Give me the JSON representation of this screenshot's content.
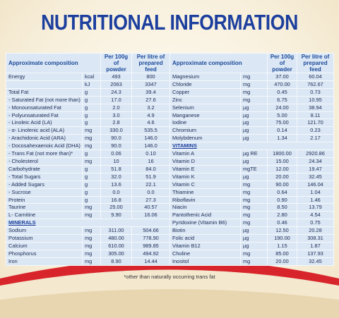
{
  "title": "NUTRITIONAL INFORMATION",
  "table": {
    "left": {
      "header": [
        "Approximate composition",
        "Per 100g of powder",
        "Per litre of prepared feed"
      ],
      "rows": [
        [
          "Energy",
          "kcal",
          "493",
          "800"
        ],
        [
          null,
          "kJ",
          "2063",
          "3347"
        ],
        [
          "Total Fat",
          "g",
          "24.3",
          "39.4"
        ],
        [
          "- Saturated Fat (not more than)",
          "g",
          "17.0",
          "27.6"
        ],
        [
          "- Monounsaturated Fat",
          "g",
          "2.0",
          "3.2"
        ],
        [
          "- Polyunsaturated Fat",
          "g",
          "3.0",
          "4.9"
        ],
        [
          "- Linoleic Acid (LA)",
          "g",
          "2.8",
          "4.6"
        ],
        [
          "- α- Linolenic acid (ALA)",
          "mg",
          "330.0",
          "535.5"
        ],
        [
          "- Arachidonic Acid (ARA)",
          "mg",
          "90.0",
          "146.0"
        ],
        [
          "- Docosahexaenoic Acid (DHA)",
          "mg",
          "90.0",
          "146.0"
        ],
        [
          "- Trans Fat (not more than)*",
          "g",
          "0.06",
          "0.10"
        ],
        [
          "- Cholesterol",
          "mg",
          "10",
          "16"
        ],
        [
          "Carbohydrate",
          "g",
          "51.8",
          "84.0"
        ],
        [
          "- Total Sugars",
          "g",
          "32.0",
          "51.9"
        ],
        [
          "- Added Sugars",
          "g",
          "13.6",
          "22.1"
        ],
        [
          "- Sucrose",
          "g",
          "0.0",
          "0.0"
        ],
        [
          "Protein",
          "g",
          "16.8",
          "27.3"
        ],
        [
          "Taurine",
          "mg",
          "25.00",
          "40.57"
        ],
        [
          "L- Carnitine",
          "mg",
          "9.90",
          "16.06"
        ],
        [
          "MINERALS"
        ],
        [
          "Sodium",
          "mg",
          "311.00",
          "504.66"
        ],
        [
          "Potassium",
          "mg",
          "480.00",
          "778.90"
        ],
        [
          "Calcium",
          "mg",
          "610.00",
          "989.85"
        ],
        [
          "Phosphorus",
          "mg",
          "305.00",
          "494.92"
        ],
        [
          "Iron",
          "mg",
          "8.90",
          "14.44"
        ]
      ]
    },
    "right": {
      "header": [
        "Approximate composition",
        "Per 100g of powder",
        "Per litre of prepared feed"
      ],
      "rows": [
        [
          "Magnesium",
          "mg",
          "37.00",
          "60.04"
        ],
        [
          "Chloride",
          "mg",
          "470.00",
          "762.67"
        ],
        [
          "Copper",
          "mg",
          "0.45",
          "0.73"
        ],
        [
          "Zinc",
          "mg",
          "6.75",
          "10.95"
        ],
        [
          "Selenium",
          "µg",
          "24.00",
          "38.94"
        ],
        [
          "Manganese",
          "µg",
          "5.00",
          "8.11"
        ],
        [
          "Iodine",
          "µg",
          "75.00",
          "121.70"
        ],
        [
          "Chromium",
          "µg",
          "0.14",
          "0.23"
        ],
        [
          "Molybdenum",
          "µg",
          "1.34",
          "2.17"
        ],
        [
          "VITAMINS"
        ],
        [
          "Vitamin A",
          "µg RE",
          "1800.00",
          "2920.86"
        ],
        [
          "Vitamin D",
          "µg",
          "15.00",
          "24.34"
        ],
        [
          "Vitamin E",
          "mgTE",
          "12.00",
          "19.47"
        ],
        [
          "Vitamin K",
          "µg",
          "20.00",
          "32.45"
        ],
        [
          "Vitamin C",
          "mg",
          "90.00",
          "146.04"
        ],
        [
          "Thiamine",
          "mg",
          "0.64",
          "1.04"
        ],
        [
          "Riboflavin",
          "mg",
          "0.90",
          "1.46"
        ],
        [
          "Niacin",
          "mg",
          "8.50",
          "13.79"
        ],
        [
          "Pantothenic Acid",
          "mg",
          "2.80",
          "4.54"
        ],
        [
          "Pyridoxine (Vitamin B6)",
          "mg",
          "0.46",
          "0.75"
        ],
        [
          "Biotin",
          "µg",
          "12.50",
          "20.28"
        ],
        [
          "Folic acid",
          "µg",
          "190.00",
          "308.31"
        ],
        [
          "Vitamin B12",
          "µg",
          "1.15",
          "1.87"
        ],
        [
          "Choline",
          "mg",
          "85.00",
          "137.93"
        ],
        [
          "Inositol",
          "mg",
          "20.00",
          "32.45"
        ]
      ]
    }
  },
  "footnote": "*other than naturally occurring trans fat"
}
